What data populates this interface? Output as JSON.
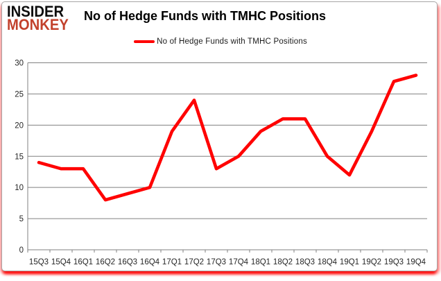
{
  "logo": {
    "line1": "INSIDER",
    "line2": "MONKEY"
  },
  "header": {
    "title": "No of Hedge Funds with TMHC Positions"
  },
  "legend": {
    "label": "No of Hedge Funds with TMHC Positions"
  },
  "colors": {
    "line": "#FF0000",
    "logo_accent": "#C2412C",
    "gridline": "#808080",
    "axis_text": "#262626",
    "title_text": "#000000"
  },
  "chart_data": {
    "type": "line",
    "title": "No of Hedge Funds with TMHC Positions",
    "categories": [
      "15Q3",
      "15Q4",
      "16Q1",
      "16Q2",
      "16Q3",
      "16Q4",
      "17Q1",
      "17Q2",
      "17Q3",
      "17Q4",
      "18Q1",
      "18Q2",
      "18Q3",
      "18Q4",
      "19Q1",
      "19Q2",
      "19Q3",
      "19Q4"
    ],
    "series": [
      {
        "name": "No of Hedge Funds with TMHC Positions",
        "values": [
          14,
          13,
          13,
          8,
          9,
          10,
          19,
          24,
          13,
          15,
          19,
          21,
          21,
          15,
          12,
          19,
          27,
          28
        ]
      }
    ],
    "xlabel": "",
    "ylabel": "",
    "ylim": [
      0,
      30
    ],
    "ytick_step": 5,
    "grid": true,
    "legend_position": "top"
  }
}
